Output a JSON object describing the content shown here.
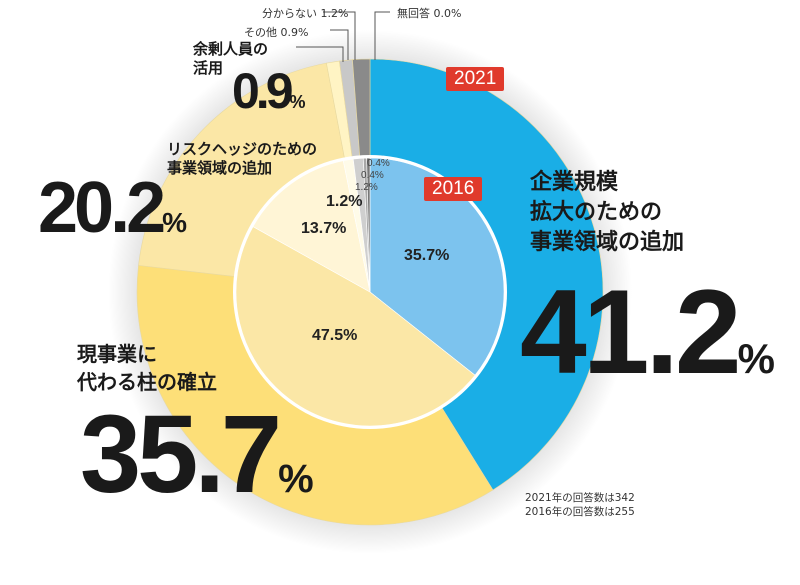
{
  "chart_data": {
    "type": "pie",
    "title": "",
    "series": [
      {
        "name": "2021",
        "ring": "outer",
        "colors": [
          "#1aaee6",
          "#fddf78",
          "#fbe7a6",
          "#fff4c4",
          "#c8c8c8",
          "#8a8a8a",
          "#555555"
        ],
        "values": [
          41.2,
          35.7,
          20.2,
          0.9,
          0.9,
          1.2,
          0.0
        ]
      },
      {
        "name": "2016",
        "ring": "inner",
        "colors": [
          "#7cc3ee",
          "#fbe7a6",
          "#fff5d6",
          "#fffbe8",
          "#cfcfcf",
          "#a8a8a8",
          "#777777"
        ],
        "values": [
          35.7,
          47.5,
          13.7,
          1.2,
          1.2,
          0.4,
          0.4
        ]
      }
    ],
    "categories": [
      "企業規模拡大のための事業領域の追加",
      "現事業に代わる柱の確立",
      "リスクヘッジのための事業領域の追加",
      "余剰人員の活用",
      "その他",
      "分からない",
      "無回答"
    ]
  },
  "labels": {
    "cat1": [
      "企業規模",
      "拡大のための",
      "事業領域の追加"
    ],
    "val1": "41.2",
    "cat2": [
      "現事業に",
      "代わる柱の確立"
    ],
    "val2": "35.7",
    "cat3": [
      "リスクヘッジのための",
      "事業領域の追加"
    ],
    "val3": "20.2",
    "cat4": [
      "余剰人員の",
      "活用"
    ],
    "val4": "0.9",
    "pct": "%",
    "other": "その他  0.9%",
    "unknown": "分からない  1.2%",
    "noanswer": "無回答  0.0%",
    "tag2021": "2021",
    "tag2016": "2016",
    "inner": [
      "35.7%",
      "47.5%",
      "13.7%",
      "1.2%"
    ],
    "inner_small": [
      "0.4%",
      "0.4%",
      "1.2%"
    ],
    "notes": [
      "2021年の回答数は342",
      "2016年の回答数は255"
    ]
  }
}
